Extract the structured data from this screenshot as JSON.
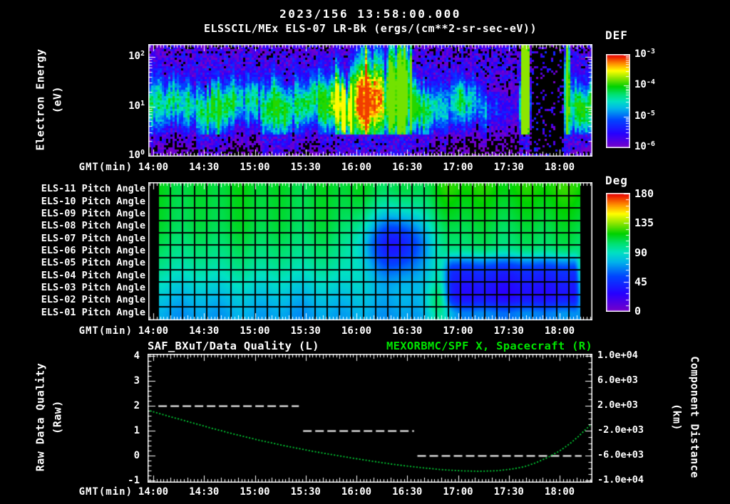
{
  "header": {
    "date_title": "2023/156 13:58:00.000",
    "main_title": "ELSSCIL/MEx ELS-07 LR-Bk  (ergs/(cm**2-sr-sec-eV))"
  },
  "colors": {
    "background": "#000000",
    "text": "#ffffff",
    "accent_green": "#00e400",
    "curve_green": "#00d235",
    "grid_line": "#000000",
    "rainbow_stops": [
      [
        0.0,
        120,
        0,
        200
      ],
      [
        0.15,
        40,
        0,
        255
      ],
      [
        0.3,
        0,
        70,
        255
      ],
      [
        0.42,
        0,
        180,
        235
      ],
      [
        0.5,
        0,
        225,
        195
      ],
      [
        0.58,
        0,
        225,
        110
      ],
      [
        0.66,
        0,
        210,
        0
      ],
      [
        0.75,
        140,
        230,
        0
      ],
      [
        0.83,
        255,
        255,
        0
      ],
      [
        0.91,
        255,
        140,
        0
      ],
      [
        1.0,
        230,
        0,
        0
      ]
    ]
  },
  "time_axis": {
    "label": "GMT(min)",
    "tick_labels": [
      "14:00",
      "14:30",
      "15:00",
      "15:30",
      "16:00",
      "16:30",
      "17:00",
      "17:30",
      "18:00"
    ],
    "tick_minutes": [
      0,
      30,
      60,
      90,
      120,
      150,
      180,
      210,
      240
    ],
    "minor_step_min": 2,
    "range_minutes": [
      -2.9,
      259.4
    ]
  },
  "chart_data": [
    {
      "id": "electron_energy_spectrogram",
      "type": "heatmap",
      "ylabel": "Electron Energy",
      "ylabel_units": "(eV)",
      "y_scale": "log",
      "y_range_ev": [
        1,
        178
      ],
      "ytick_exponents": [
        "2",
        "1",
        "0"
      ],
      "colorbar": {
        "title": "DEF",
        "tick_exponents": [
          "-3",
          "-4",
          "-5",
          "-6"
        ],
        "range": [
          1e-06,
          0.001
        ]
      },
      "description": "Electron flux band centered near 10 eV; brightens to orange/red 16:05-16:15, tall green columns 16:20-16:35, dims after 16:50, bright full-height stripe ~17:38, telemetry blackout 17:43-18:03, thin stripe ~18:04, band resumes to end",
      "intensity_timeline": [
        [
          -3,
          0.55
        ],
        [
          15,
          0.5
        ],
        [
          35,
          0.58
        ],
        [
          55,
          0.5
        ],
        [
          75,
          0.56
        ],
        [
          95,
          0.6
        ],
        [
          102,
          0.66
        ],
        [
          107,
          0.88
        ],
        [
          112,
          0.78
        ],
        [
          117,
          0.76
        ],
        [
          122,
          0.9
        ],
        [
          127,
          1.0
        ],
        [
          132,
          0.92
        ],
        [
          136,
          0.72
        ],
        [
          139,
          0.88
        ],
        [
          146,
          0.92
        ],
        [
          152,
          0.82
        ],
        [
          157,
          0.6
        ],
        [
          164,
          0.52
        ],
        [
          171,
          0.42
        ],
        [
          177,
          0.46
        ],
        [
          182,
          0.62
        ],
        [
          186,
          0.52
        ],
        [
          191,
          0.36
        ],
        [
          197,
          0.3
        ],
        [
          203,
          0.22
        ],
        [
          210,
          0.17
        ],
        [
          216,
          0.14
        ],
        [
          217.5,
          1.0
        ],
        [
          220,
          1.05
        ],
        [
          222,
          0.8
        ],
        [
          223.5,
          0.05
        ],
        [
          232,
          0.04
        ],
        [
          241,
          0.05
        ],
        [
          242.7,
          0.1
        ],
        [
          243.5,
          0.85
        ],
        [
          245.2,
          0.8
        ],
        [
          246.5,
          0.5
        ],
        [
          250,
          0.6
        ],
        [
          255,
          0.62
        ],
        [
          259,
          0.56
        ]
      ],
      "hot_windows": [
        {
          "t": [
            104,
            117
          ],
          "cap": -3.5
        },
        {
          "t": [
            119,
            136
          ],
          "cap": -3.12
        },
        {
          "t": [
            138,
            153
          ],
          "cap": -3.8
        },
        {
          "t": [
            217,
            222.5
          ],
          "cap": -3.75
        },
        {
          "t": [
            242.5,
            246
          ],
          "cap": -3.8
        }
      ],
      "shape_windows": [
        {
          "t": [
            119,
            136
          ],
          "sig": 1.5,
          "c0": 1.12
        },
        {
          "t": [
            138,
            153
          ],
          "sig": 1.8,
          "c0": 1.22
        },
        {
          "t": [
            217,
            222.5
          ],
          "sig": 2.6,
          "c0": 1.3
        },
        {
          "t": [
            242.5,
            246
          ],
          "sig": 2.2,
          "c0": 1.2
        }
      ],
      "blackout_window": [
        223.2,
        242.5
      ],
      "band_center_log_ev": 1.02
    },
    {
      "id": "pitch_angle_panel",
      "type": "heatmap",
      "row_labels": [
        "ELS-11 Pitch Angle",
        "ELS-10 Pitch Angle",
        "ELS-09 Pitch Angle",
        "ELS-08 Pitch Angle",
        "ELS-07 Pitch Angle",
        "ELS-06 Pitch Angle",
        "ELS-05 Pitch Angle",
        "ELS-04 Pitch Angle",
        "ELS-03 Pitch Angle",
        "ELS-02 Pitch Angle",
        "ELS-01 Pitch Angle"
      ],
      "colorbar": {
        "title": "Deg",
        "ticks": [
          "180",
          "135",
          "90",
          "45",
          "0"
        ],
        "range": [
          0,
          180
        ]
      },
      "row_base_deg": [
        113,
        112,
        111,
        110,
        107,
        103,
        98,
        91,
        84,
        77,
        72
      ],
      "blue_blob": {
        "t_center": 143,
        "t_sigma": 14,
        "row_center": 4.3,
        "row_sigma": 1.8,
        "delta_deg": -70
      },
      "blue_band": {
        "t_start": 168,
        "t_end": 248,
        "row_center": 7.5,
        "delta_deg": -52
      },
      "green_patch": {
        "t_center": 168,
        "t_sigma": 5.5,
        "row_center": 9.3,
        "row_sigma": 1.2,
        "delta_deg": 26
      },
      "warm_top_right": {
        "t_start": 162,
        "delta_deg": 8
      },
      "data_time_range": [
        3,
        252.5
      ],
      "grid_cols": 35
    },
    {
      "id": "quality_and_distance_plot",
      "type": "line",
      "title_left": "SAF_BXuT/Data Quality (L)",
      "title_right": "MEXORBMC/SPF X, Spacecraft (R)",
      "ylabel_left": "Raw Data Quality",
      "ylabel_left_units": "(Raw)",
      "ylabel_right": "Component Distance",
      "ylabel_right_units": "(km)",
      "left_ticks": [
        "4",
        "3",
        "2",
        "1",
        "0",
        "-1"
      ],
      "left_range": [
        -1,
        4
      ],
      "right_ticks": [
        "1.0e+04",
        "6.0e+03",
        "2.0e+03",
        "-2.0e+03",
        "-6.0e+03",
        "-1.0e+04"
      ],
      "right_range": [
        -10000,
        10000
      ],
      "series": [
        {
          "name": "Raw Data Quality",
          "style": "dashed_white",
          "segments": [
            {
              "value": 2,
              "t": [
                3,
                86
              ]
            },
            {
              "value": 1,
              "t": [
                88.5,
                154
              ]
            },
            {
              "value": 0,
              "t": [
                156,
                253
              ]
            }
          ]
        },
        {
          "name": "Spacecraft X Component Distance",
          "style": "dotted_green",
          "points_t_km": [
            [
              -2,
              1200
            ],
            [
              8,
              400
            ],
            [
              20,
              -500
            ],
            [
              33,
              -1500
            ],
            [
              47,
              -2500
            ],
            [
              62,
              -3500
            ],
            [
              78,
              -4450
            ],
            [
              95,
              -5350
            ],
            [
              112,
              -6150
            ],
            [
              128,
              -6850
            ],
            [
              143,
              -7450
            ],
            [
              157,
              -7900
            ],
            [
              170,
              -8250
            ],
            [
              182,
              -8450
            ],
            [
              192,
              -8520
            ],
            [
              202,
              -8450
            ],
            [
              211,
              -8200
            ],
            [
              219,
              -7800
            ],
            [
              226,
              -7150
            ],
            [
              233,
              -6300
            ],
            [
              240,
              -5250
            ],
            [
              246,
              -4100
            ],
            [
              251,
              -2950
            ],
            [
              255,
              -1900
            ],
            [
              258,
              -1150
            ]
          ]
        }
      ]
    }
  ]
}
